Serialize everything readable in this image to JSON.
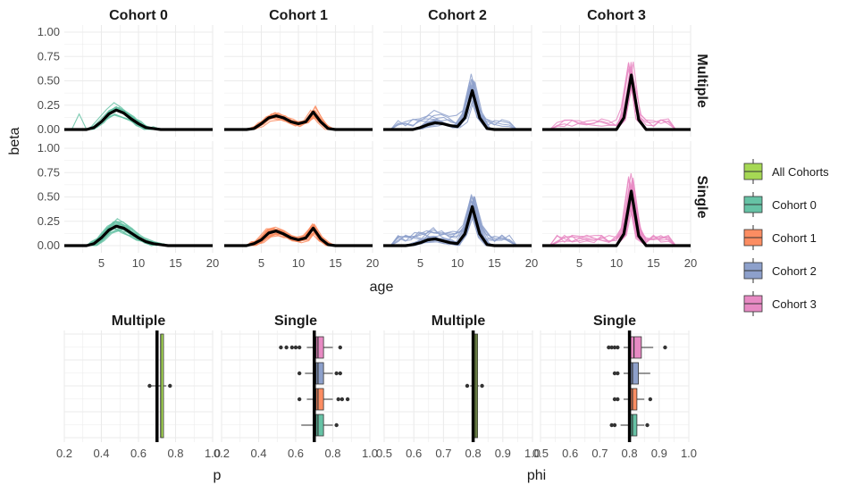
{
  "colors": {
    "all": "#a6d854",
    "c0": "#66c2a5",
    "c1": "#fc8d62",
    "c2": "#8da0cb",
    "c3": "#e78ac3",
    "mean": "#000000",
    "panel_bg": "#ffffff",
    "grid": "#ebebeb"
  },
  "chart_data": [
    {
      "type": "line",
      "title": "",
      "xlabel": "age",
      "ylabel": "beta",
      "xlim": [
        0,
        20
      ],
      "ylim": [
        0,
        1
      ],
      "x_ticks": [
        "5",
        "10",
        "15",
        "20"
      ],
      "y_ticks": [
        "0.00",
        "0.25",
        "0.50",
        "0.75",
        "1.00"
      ],
      "facet_cols": [
        "Cohort 0",
        "Cohort 1",
        "Cohort 2",
        "Cohort 3"
      ],
      "facet_rows": [
        "Multiple",
        "Single"
      ],
      "mean_curves": {
        "Cohort 0": {
          "x": [
            0,
            1,
            2,
            3,
            4,
            5,
            6,
            7,
            8,
            9,
            10,
            11,
            12,
            13,
            14,
            15,
            16,
            17,
            18,
            19,
            20
          ],
          "Multiple": [
            0,
            0,
            0,
            0,
            0.02,
            0.08,
            0.16,
            0.2,
            0.17,
            0.11,
            0.06,
            0.02,
            0.01,
            0,
            0,
            0,
            0,
            0,
            0,
            0,
            0
          ],
          "Single": [
            0,
            0,
            0,
            0,
            0.02,
            0.08,
            0.16,
            0.2,
            0.18,
            0.13,
            0.08,
            0.04,
            0.02,
            0.01,
            0,
            0,
            0,
            0,
            0,
            0,
            0
          ]
        },
        "Cohort 1": {
          "x": [
            0,
            1,
            2,
            3,
            4,
            5,
            6,
            7,
            8,
            9,
            10,
            11,
            12,
            13,
            14,
            15,
            16,
            17,
            18,
            19,
            20
          ],
          "Multiple": [
            0,
            0,
            0,
            0,
            0.01,
            0.06,
            0.12,
            0.14,
            0.12,
            0.08,
            0.06,
            0.08,
            0.18,
            0.08,
            0.01,
            0,
            0,
            0,
            0,
            0,
            0
          ],
          "Single": [
            0,
            0,
            0,
            0,
            0.02,
            0.06,
            0.13,
            0.15,
            0.12,
            0.08,
            0.06,
            0.08,
            0.18,
            0.07,
            0.01,
            0,
            0,
            0,
            0,
            0,
            0
          ]
        },
        "Cohort 2": {
          "x": [
            0,
            1,
            2,
            3,
            4,
            5,
            6,
            7,
            8,
            9,
            10,
            11,
            12,
            13,
            14,
            15,
            16,
            17,
            18,
            19,
            20
          ],
          "Multiple": [
            0,
            0,
            0,
            0,
            0,
            0.02,
            0.05,
            0.07,
            0.06,
            0.04,
            0.03,
            0.12,
            0.4,
            0.12,
            0.01,
            0,
            0,
            0,
            0,
            0,
            0
          ],
          "Single": [
            0,
            0,
            0,
            0,
            0.01,
            0.03,
            0.06,
            0.07,
            0.05,
            0.03,
            0.02,
            0.12,
            0.4,
            0.12,
            0.01,
            0,
            0,
            0,
            0,
            0,
            0
          ]
        },
        "Cohort 3": {
          "x": [
            0,
            1,
            2,
            3,
            4,
            5,
            6,
            7,
            8,
            9,
            10,
            11,
            12,
            13,
            14,
            15,
            16,
            17,
            18,
            19,
            20
          ],
          "Multiple": [
            0,
            0,
            0,
            0,
            0,
            0,
            0,
            0,
            0,
            0,
            0,
            0.12,
            0.56,
            0.1,
            0,
            0,
            0,
            0,
            0,
            0,
            0
          ],
          "Single": [
            0,
            0,
            0,
            0,
            0,
            0,
            0,
            0,
            0,
            0,
            0,
            0.12,
            0.56,
            0.1,
            0,
            0,
            0,
            0,
            0,
            0,
            0
          ]
        }
      }
    },
    {
      "type": "box",
      "xlabel": "p",
      "xlim": [
        0.2,
        1.0
      ],
      "x_ticks": [
        "0.2",
        "0.4",
        "0.6",
        "0.8",
        "1.0"
      ],
      "facets": [
        "Multiple",
        "Single"
      ],
      "reference_line": 0.7,
      "boxes": {
        "Multiple": [
          {
            "group": "All Cohorts",
            "min": 0.67,
            "q1": 0.72,
            "median": 0.72,
            "q3": 0.735,
            "max": 0.75,
            "outliers": [
              0.66,
              0.77
            ]
          }
        ],
        "Single": [
          {
            "group": "Cohort 0",
            "min": 0.63,
            "q1": 0.71,
            "median": 0.72,
            "q3": 0.75,
            "max": 0.8,
            "outliers": [
              0.82
            ]
          },
          {
            "group": "Cohort 1",
            "min": 0.66,
            "q1": 0.71,
            "median": 0.72,
            "q3": 0.75,
            "max": 0.8,
            "outliers": [
              0.62,
              0.83,
              0.85,
              0.88
            ]
          },
          {
            "group": "Cohort 2",
            "min": 0.65,
            "q1": 0.71,
            "median": 0.72,
            "q3": 0.75,
            "max": 0.8,
            "outliers": [
              0.62,
              0.82,
              0.84
            ]
          },
          {
            "group": "Cohort 3",
            "min": 0.66,
            "q1": 0.71,
            "median": 0.72,
            "q3": 0.75,
            "max": 0.8,
            "outliers": [
              0.52,
              0.55,
              0.58,
              0.6,
              0.62,
              0.84
            ]
          }
        ]
      }
    },
    {
      "type": "box",
      "xlabel": "phi",
      "xlim": [
        0.5,
        1.0
      ],
      "x_ticks": [
        "0.5",
        "0.6",
        "0.7",
        "0.8",
        "0.9",
        "1.0"
      ],
      "facets": [
        "Multiple",
        "Single"
      ],
      "reference_line": 0.8,
      "boxes": {
        "Multiple": [
          {
            "group": "All Cohorts",
            "min": 0.79,
            "q1": 0.805,
            "median": 0.81,
            "q3": 0.815,
            "max": 0.82,
            "outliers": [
              0.78,
              0.83
            ]
          }
        ],
        "Single": [
          {
            "group": "Cohort 0",
            "min": 0.77,
            "q1": 0.8,
            "median": 0.81,
            "q3": 0.825,
            "max": 0.85,
            "outliers": [
              0.74,
              0.75,
              0.86
            ]
          },
          {
            "group": "Cohort 1",
            "min": 0.78,
            "q1": 0.8,
            "median": 0.81,
            "q3": 0.825,
            "max": 0.85,
            "outliers": [
              0.75,
              0.76,
              0.87
            ]
          },
          {
            "group": "Cohort 2",
            "min": 0.78,
            "q1": 0.8,
            "median": 0.81,
            "q3": 0.83,
            "max": 0.87,
            "outliers": [
              0.75,
              0.76
            ]
          },
          {
            "group": "Cohort 3",
            "min": 0.78,
            "q1": 0.8,
            "median": 0.815,
            "q3": 0.84,
            "max": 0.88,
            "outliers": [
              0.73,
              0.74,
              0.75,
              0.76,
              0.92
            ]
          }
        ]
      }
    }
  ],
  "legend": {
    "title": "",
    "entries": [
      {
        "label": "All Cohorts",
        "color_key": "all"
      },
      {
        "label": "Cohort 0",
        "color_key": "c0"
      },
      {
        "label": "Cohort 1",
        "color_key": "c1"
      },
      {
        "label": "Cohort 2",
        "color_key": "c2"
      },
      {
        "label": "Cohort 3",
        "color_key": "c3"
      }
    ]
  }
}
